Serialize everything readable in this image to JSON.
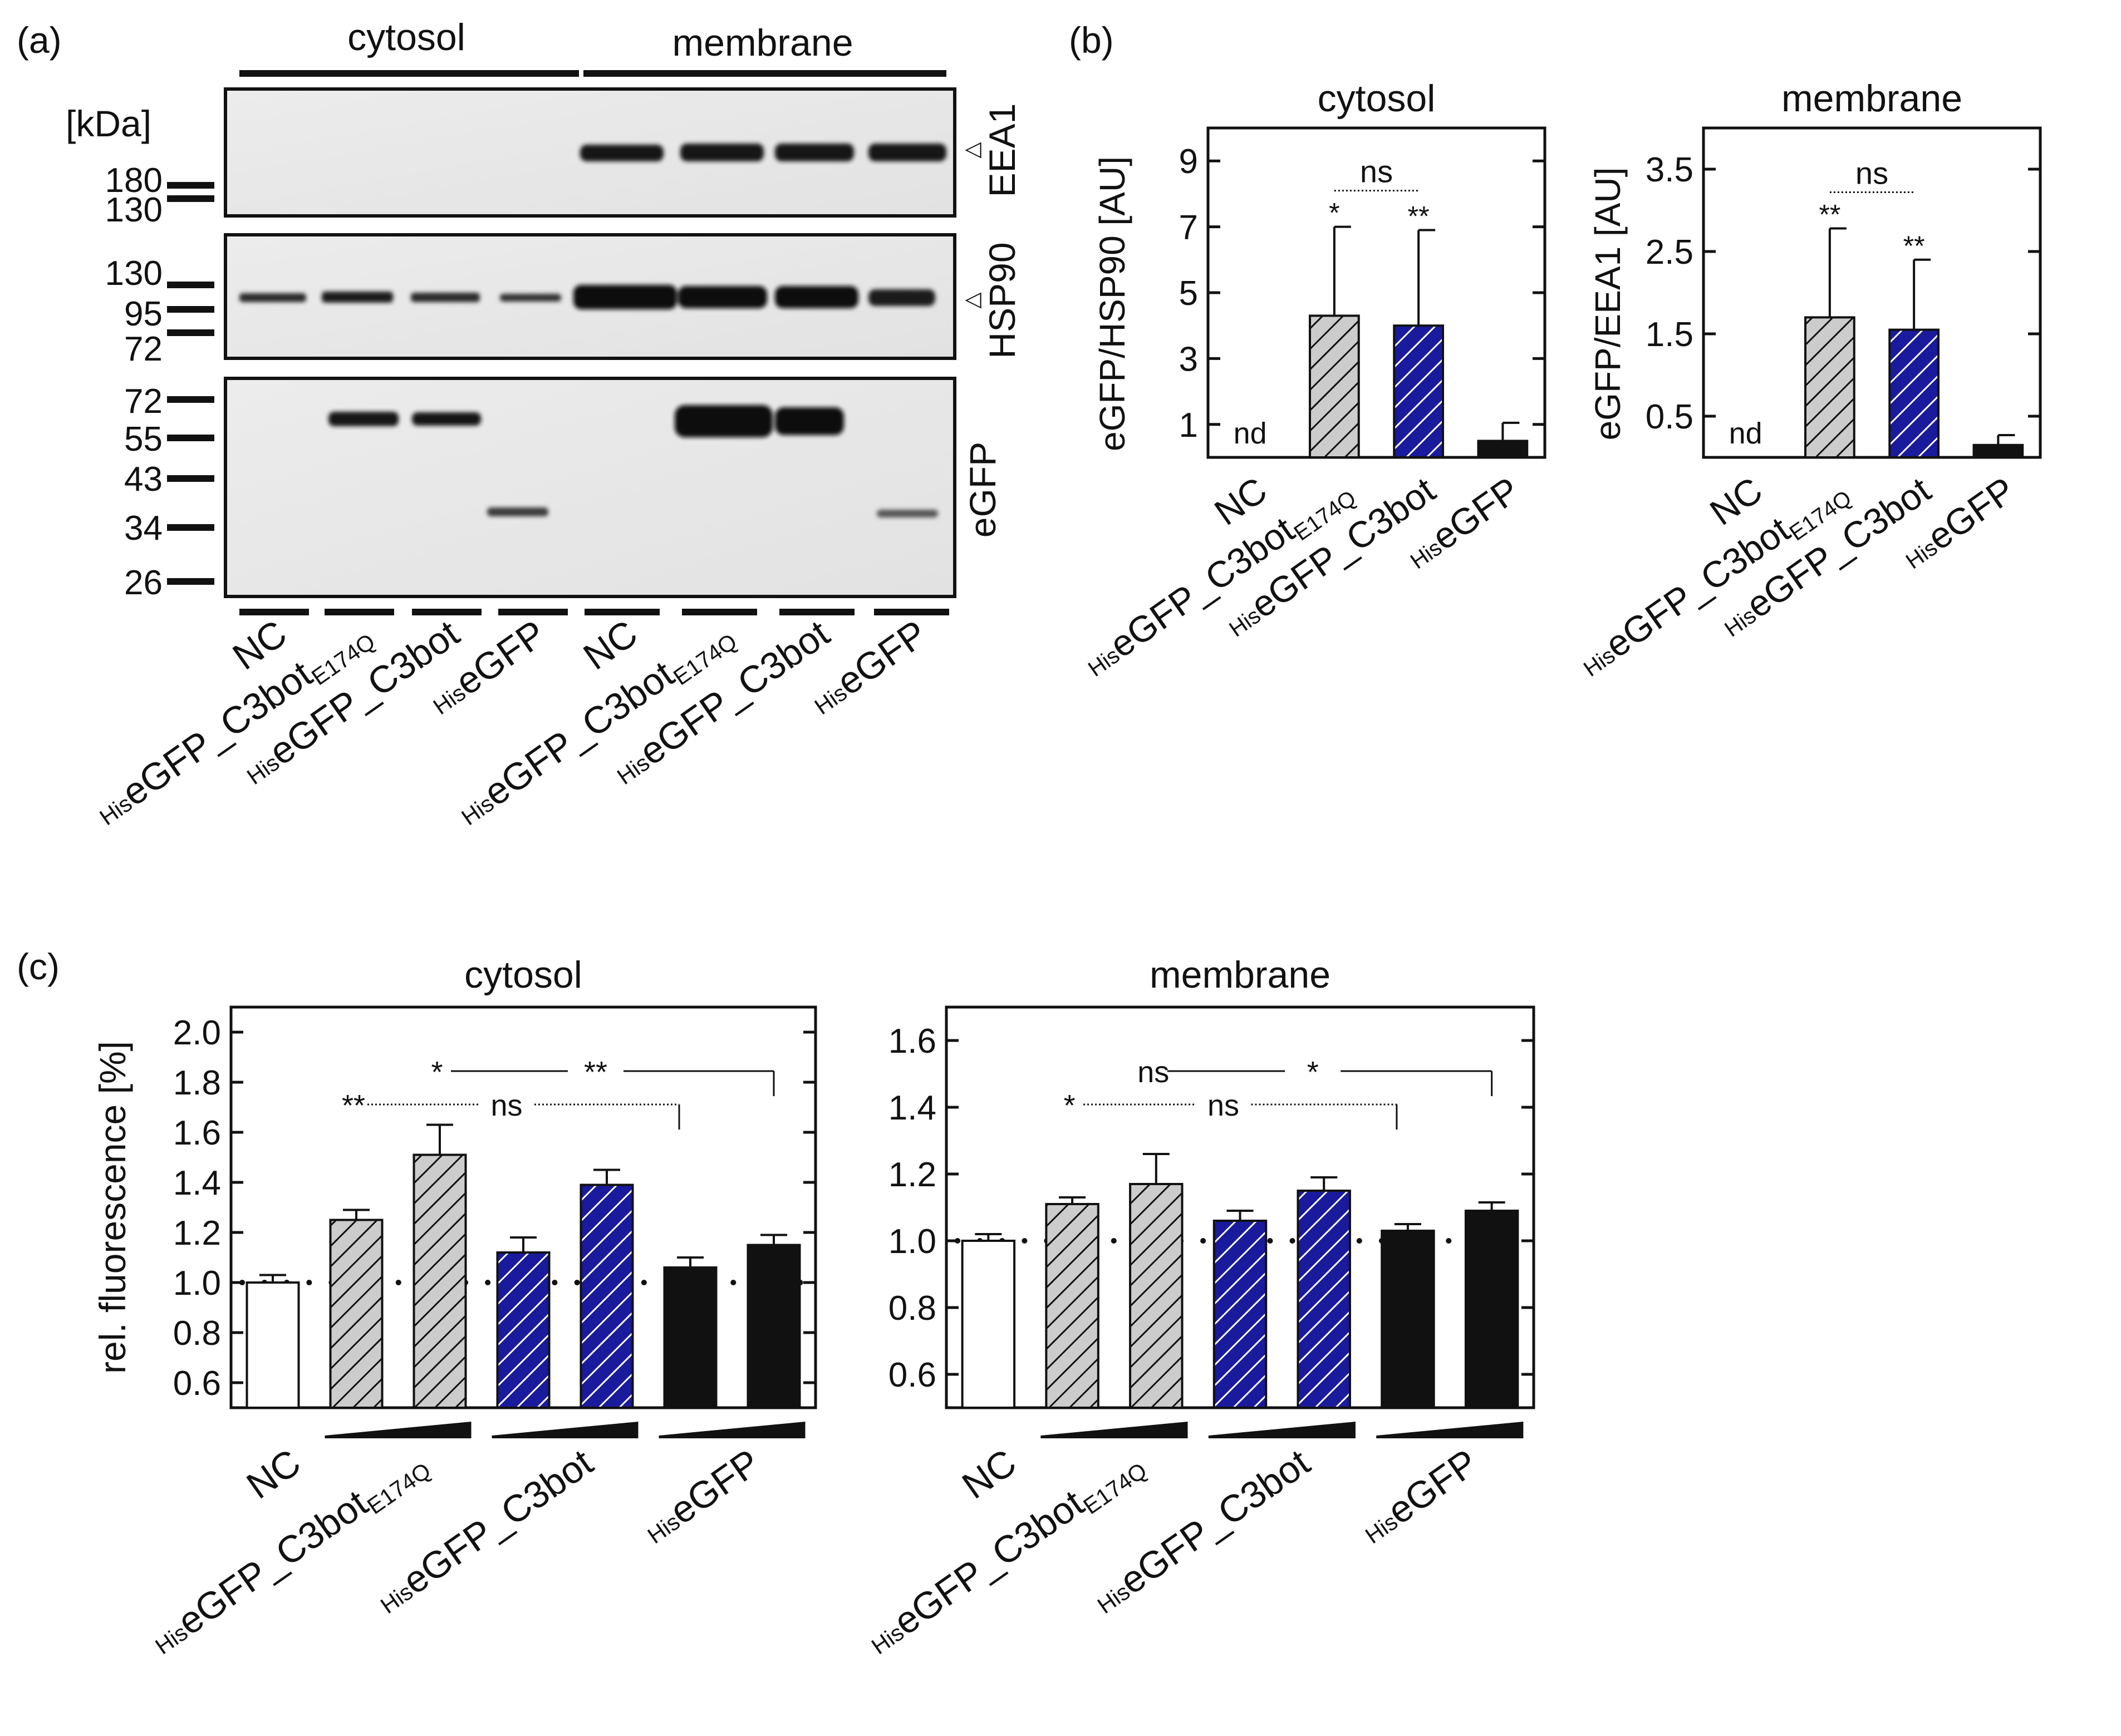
{
  "colors": {
    "white": "#ffffff",
    "gray": "#cccccc",
    "blue": "#1a1a9c",
    "black": "#111111"
  },
  "panel_labels": {
    "a": "(a)",
    "b": "(b)",
    "c": "(c)"
  },
  "blot": {
    "fraction_labels": [
      "cytosol",
      "membrane"
    ],
    "kda_label": "[kDa]",
    "top_markers": [
      "180",
      "130"
    ],
    "mid_markers": [
      "130",
      "95",
      "72"
    ],
    "bot_markers": [
      "72",
      "55",
      "43",
      "34",
      "26"
    ],
    "antibodies": [
      "EEA1",
      "HSP90",
      "eGFP"
    ],
    "arrow_glyph": "△",
    "lanes": [
      {
        "prefix": "",
        "main": "NC",
        "sub": ""
      },
      {
        "prefix": "His",
        "main": "eGFP_C3bot",
        "sub": "E174Q"
      },
      {
        "prefix": "His",
        "main": "eGFP_C3bot",
        "sub": ""
      },
      {
        "prefix": "His",
        "main": "eGFP",
        "sub": ""
      },
      {
        "prefix": "",
        "main": "NC",
        "sub": ""
      },
      {
        "prefix": "His",
        "main": "eGFP_C3bot",
        "sub": "E174Q"
      },
      {
        "prefix": "His",
        "main": "eGFP_C3bot",
        "sub": ""
      },
      {
        "prefix": "His",
        "main": "eGFP",
        "sub": ""
      }
    ]
  },
  "chart_data": [
    {
      "id": "b_cytosol",
      "type": "bar",
      "title": "cytosol",
      "ylabel": "eGFP/HSP90 [AU]",
      "ylim": [
        0,
        10
      ],
      "yticks": [
        "1",
        "3",
        "5",
        "7",
        "9"
      ],
      "categories": [
        {
          "prefix": "",
          "main": "NC",
          "sub": ""
        },
        {
          "prefix": "His",
          "main": "eGFP_C3bot",
          "sub": "E174Q"
        },
        {
          "prefix": "His",
          "main": "eGFP_C3bot",
          "sub": ""
        },
        {
          "prefix": "His",
          "main": "eGFP",
          "sub": ""
        }
      ],
      "values": [
        0,
        4.3,
        4.0,
        0.5
      ],
      "errors": [
        0,
        2.7,
        2.9,
        0.55
      ],
      "fills": [
        "none",
        "gray",
        "blue",
        "black"
      ],
      "bar_labels": [
        "nd",
        "",
        "",
        ""
      ],
      "stars": [
        "",
        "*",
        "**",
        ""
      ],
      "comparisons": [
        {
          "from": 1,
          "to": 2,
          "label": "ns"
        }
      ]
    },
    {
      "id": "b_membrane",
      "type": "bar",
      "title": "membrane",
      "ylabel": "eGFP/EEA1 [AU]",
      "ylim": [
        0,
        4
      ],
      "yticks": [
        "0.5",
        "1.5",
        "2.5",
        "3.5"
      ],
      "categories": [
        {
          "prefix": "",
          "main": "NC",
          "sub": ""
        },
        {
          "prefix": "His",
          "main": "eGFP_C3bot",
          "sub": "E174Q"
        },
        {
          "prefix": "His",
          "main": "eGFP_C3bot",
          "sub": ""
        },
        {
          "prefix": "His",
          "main": "eGFP",
          "sub": ""
        }
      ],
      "values": [
        0,
        1.7,
        1.55,
        0.15
      ],
      "errors": [
        0,
        1.08,
        0.85,
        0.12
      ],
      "fills": [
        "none",
        "gray",
        "blue",
        "black"
      ],
      "bar_labels": [
        "nd",
        "",
        "",
        ""
      ],
      "stars": [
        "",
        "**",
        "**",
        ""
      ],
      "comparisons": [
        {
          "from": 1,
          "to": 2,
          "label": "ns"
        }
      ]
    },
    {
      "id": "c_cytosol",
      "type": "bar",
      "title": "cytosol",
      "ylabel": "rel. fluorescence [%]",
      "ylim": [
        0.5,
        2.1
      ],
      "yticks": [
        "0.6",
        "0.8",
        "1.0",
        "1.2",
        "1.4",
        "1.6",
        "1.8",
        "2.0"
      ],
      "reference_line": 1.0,
      "values": [
        1.0,
        1.25,
        1.51,
        1.12,
        1.39,
        1.06,
        1.15
      ],
      "errors": [
        0.03,
        0.04,
        0.12,
        0.06,
        0.06,
        0.04,
        0.04
      ],
      "fills": [
        "white",
        "gray",
        "gray",
        "blue",
        "blue",
        "black",
        "black"
      ],
      "groups": [
        {
          "prefix": "",
          "main": "NC",
          "sub": "",
          "bars": [
            0
          ]
        },
        {
          "prefix": "His",
          "main": "eGFP_C3bot",
          "sub": "E174Q",
          "bars": [
            1,
            2
          ]
        },
        {
          "prefix": "His",
          "main": "eGFP_C3bot",
          "sub": "",
          "bars": [
            3,
            4
          ]
        },
        {
          "prefix": "His",
          "main": "eGFP",
          "sub": "",
          "bars": [
            5,
            6
          ]
        }
      ],
      "comparisons": [
        {
          "from": 1,
          "to": 5,
          "left_label": "**",
          "mid_label": "ns"
        },
        {
          "from": 2,
          "to": 6,
          "left_label": "*",
          "mid_label": "**"
        }
      ]
    },
    {
      "id": "c_membrane",
      "type": "bar",
      "title": "membrane",
      "ylabel": "",
      "ylim": [
        0.5,
        1.7
      ],
      "yticks": [
        "0.6",
        "0.8",
        "1.0",
        "1.2",
        "1.4",
        "1.6"
      ],
      "reference_line": 1.0,
      "values": [
        1.0,
        1.11,
        1.17,
        1.06,
        1.15,
        1.03,
        1.09
      ],
      "errors": [
        0.02,
        0.02,
        0.09,
        0.03,
        0.04,
        0.02,
        0.025
      ],
      "fills": [
        "white",
        "gray",
        "gray",
        "blue",
        "blue",
        "black",
        "black"
      ],
      "groups": [
        {
          "prefix": "",
          "main": "NC",
          "sub": "",
          "bars": [
            0
          ]
        },
        {
          "prefix": "His",
          "main": "eGFP_C3bot",
          "sub": "E174Q",
          "bars": [
            1,
            2
          ]
        },
        {
          "prefix": "His",
          "main": "eGFP_C3bot",
          "sub": "",
          "bars": [
            3,
            4
          ]
        },
        {
          "prefix": "His",
          "main": "eGFP",
          "sub": "",
          "bars": [
            5,
            6
          ]
        }
      ],
      "comparisons": [
        {
          "from": 1,
          "to": 5,
          "left_label": "*",
          "mid_label": "ns"
        },
        {
          "from": 2,
          "to": 6,
          "left_label": "ns",
          "mid_label": "*"
        }
      ]
    }
  ]
}
